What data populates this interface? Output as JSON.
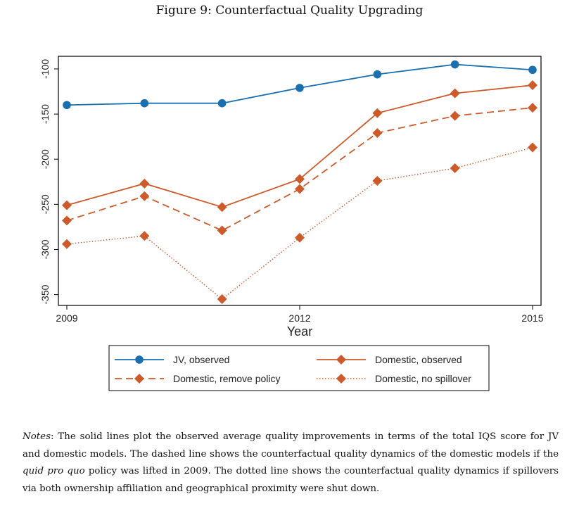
{
  "figure_title": "Figure 9: Counterfactual Quality Upgrading",
  "chart_data": {
    "type": "line",
    "title": "Figure 9: Counterfactual Quality Upgrading",
    "xlabel": "Year",
    "ylabel": "",
    "x": [
      2009,
      2010,
      2011,
      2012,
      2013,
      2014,
      2015
    ],
    "xticks": [
      2009,
      2012,
      2015
    ],
    "yticks": [
      -100,
      -150,
      -200,
      -250,
      -300,
      -350
    ],
    "xlim": [
      2009,
      2015
    ],
    "ylim": [
      -362,
      -86
    ],
    "legend_position": "bottom",
    "series": [
      {
        "name": "JV, observed",
        "color": "#1a6faf",
        "marker": "circle",
        "style": "solid",
        "values": [
          -140,
          -138,
          -138,
          -121,
          -106,
          -95,
          -101
        ]
      },
      {
        "name": "Domestic, observed",
        "color": "#cc5a2a",
        "marker": "diamond",
        "style": "solid",
        "values": [
          -251,
          -227,
          -253,
          -222,
          -149,
          -127,
          -118
        ]
      },
      {
        "name": "Domestic, remove policy",
        "color": "#cc5a2a",
        "marker": "diamond",
        "style": "dashed",
        "values": [
          -268,
          -241,
          -279,
          -233,
          -171,
          -152,
          -143
        ]
      },
      {
        "name": "Domestic, no spillover",
        "color": "#cc5a2a",
        "marker": "diamond",
        "style": "dotted",
        "values": [
          -294,
          -285,
          -355,
          -287,
          -224,
          -210,
          -187
        ]
      }
    ]
  },
  "notes": {
    "label": "Notes",
    "part1": ": The solid lines plot the observed average quality improvements in terms of the total IQS score for JV and domestic models. The dashed line shows the counterfactual quality dynamics of the domestic models if the ",
    "emph": "quid pro quo",
    "part2": " policy was lifted in 2009. The dotted line shows the counterfactual quality dynamics if spillovers via both ownership affiliation and geographical proximity were shut down."
  }
}
